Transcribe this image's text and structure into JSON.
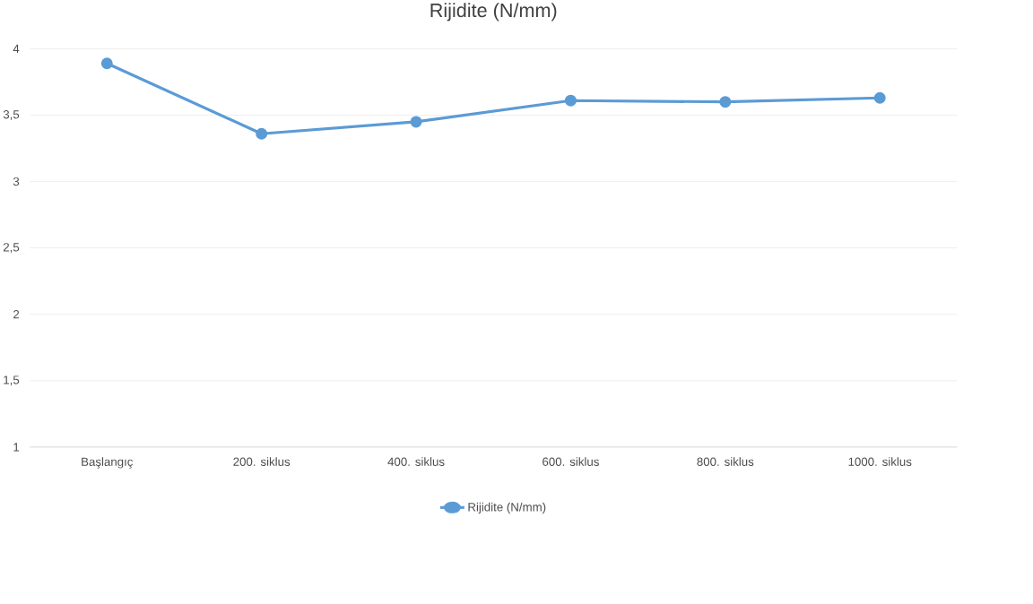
{
  "chart_data": {
    "type": "line",
    "title": "Rijidite (N/mm)",
    "categories": [
      "Başlangıç",
      "200. siklus",
      "400. siklus",
      "600. siklus",
      "800. siklus",
      "1000. siklus"
    ],
    "series": [
      {
        "name": "Rijidite (N/mm)",
        "color": "#5b9bd5",
        "values": [
          3.89,
          3.36,
          3.45,
          3.61,
          3.6,
          3.63
        ]
      }
    ],
    "ylim": [
      1,
      4
    ],
    "yticks": [
      1,
      {
        "value": 1.5,
        "label": "1,5"
      },
      2,
      {
        "value": 2.5,
        "label": "2,5"
      },
      3,
      {
        "value": 3.5,
        "label": "3,5"
      },
      4
    ],
    "grid": "y",
    "legend": "bottom",
    "marker": "circle",
    "line_style": "solid"
  }
}
